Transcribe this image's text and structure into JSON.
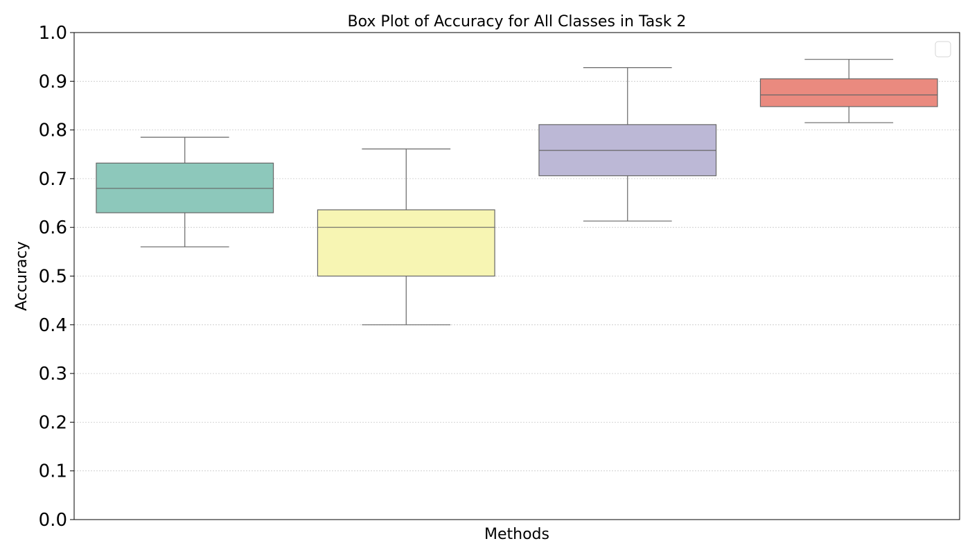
{
  "chart_data": {
    "type": "box",
    "title": "Box Plot of Accuracy for All Classes in Task 2",
    "xlabel": "Methods",
    "ylabel": "Accuracy",
    "ylim": [
      0.0,
      1.0
    ],
    "yticks": [
      0.0,
      0.1,
      0.2,
      0.3,
      0.4,
      0.5,
      0.6,
      0.7,
      0.8,
      0.9,
      1.0
    ],
    "ytick_labels": [
      "0.0",
      "0.1",
      "0.2",
      "0.3",
      "0.4",
      "0.5",
      "0.6",
      "0.7",
      "0.8",
      "0.9",
      "1.0"
    ],
    "grid": "horizontal-dotted",
    "legend": "top-right-empty",
    "boxes": [
      {
        "whisker_low": 0.56,
        "q1": 0.63,
        "median": 0.68,
        "q3": 0.732,
        "whisker_high": 0.785,
        "color": "#8dc8bb"
      },
      {
        "whisker_low": 0.4,
        "q1": 0.5,
        "median": 0.6,
        "q3": 0.636,
        "whisker_high": 0.761,
        "color": "#f7f5b3"
      },
      {
        "whisker_low": 0.613,
        "q1": 0.706,
        "median": 0.758,
        "q3": 0.811,
        "whisker_high": 0.928,
        "color": "#bcb8d6"
      },
      {
        "whisker_low": 0.815,
        "q1": 0.848,
        "median": 0.872,
        "q3": 0.905,
        "whisker_high": 0.945,
        "color": "#ea8a7f"
      }
    ]
  }
}
